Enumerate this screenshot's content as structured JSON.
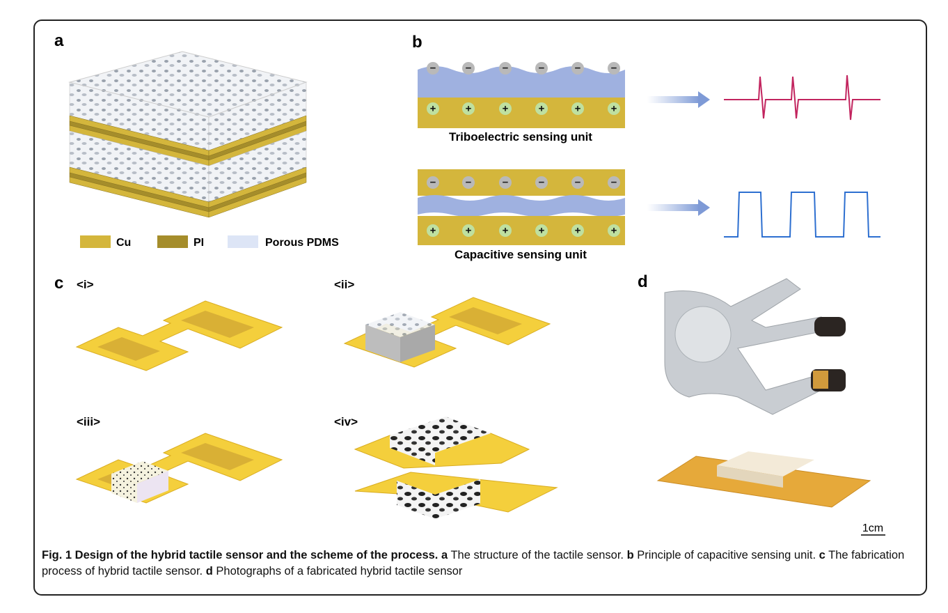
{
  "panels": {
    "a": {
      "label": "a",
      "legend": [
        "Cu",
        "PI",
        "Porous PDMS"
      ]
    },
    "b": {
      "label": "b",
      "units": [
        "Triboelectric sensing unit",
        "Capacitive sensing unit"
      ],
      "charges": {
        "negative": "−",
        "positive": "+"
      }
    },
    "c": {
      "label": "c",
      "steps": [
        "<i>",
        "<ii>",
        "<iii>",
        "<iv>"
      ]
    },
    "d": {
      "label": "d",
      "scale_bar": "1cm"
    }
  },
  "caption": {
    "title": "Fig. 1 Design of the hybrid tactile sensor and the scheme of the process.",
    "parts": [
      {
        "label": "a",
        "text": " The structure of the tactile sensor. "
      },
      {
        "label": "b",
        "text": " Principle of capacitive sensing unit. "
      },
      {
        "label": "c",
        "text": " The fabrication process of hybrid tactile sensor. "
      },
      {
        "label": "d",
        "text": " Photographs of a fabricated hybrid tactile sensor"
      }
    ]
  }
}
